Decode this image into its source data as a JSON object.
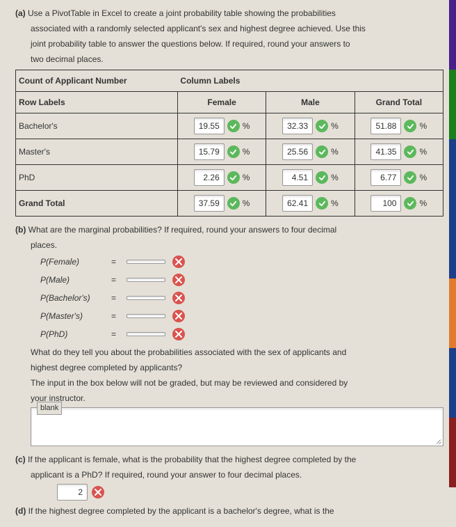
{
  "part_a": {
    "label": "(a)",
    "text_lines": [
      "Use a PivotTable in Excel to create a joint probability table showing the probabilities",
      "associated with a randomly selected applicant's sex and highest degree achieved. Use this",
      "joint probability table to answer the questions below. If required, round your answers to",
      "two decimal places."
    ]
  },
  "table": {
    "count_label": "Count of Applicant Number",
    "column_labels": "Column Labels",
    "row_labels": "Row Labels",
    "cols": [
      "Female",
      "Male",
      "Grand Total"
    ],
    "rows": [
      {
        "label": "Bachelor's",
        "vals": [
          "19.55",
          "32.33",
          "51.88"
        ]
      },
      {
        "label": "Master's",
        "vals": [
          "15.79",
          "25.56",
          "41.35"
        ]
      },
      {
        "label": "PhD",
        "vals": [
          "2.26",
          "4.51",
          "6.77"
        ]
      },
      {
        "label": "Grand Total",
        "vals": [
          "37.59",
          "62.41",
          "100"
        ]
      }
    ],
    "pct": "%",
    "val_box_bg": "#ffffff",
    "check_color": "#5cb85c"
  },
  "part_b": {
    "label": "(b)",
    "question": "What are the marginal probabilities? If required, round your answers to four decimal",
    "question2": "places.",
    "items": [
      {
        "label": "P(Female)",
        "val": ""
      },
      {
        "label": "P(Male)",
        "val": ""
      },
      {
        "label": "P(Bachelor's)",
        "val": ""
      },
      {
        "label": "P(Master's)",
        "val": ""
      },
      {
        "label": "P(PhD)",
        "val": ""
      }
    ],
    "eq": "=",
    "x_color": "#d9534f",
    "follow_lines": [
      "What do they tell you about the probabilities associated with the sex of applicants and",
      "highest degree completed by applicants?",
      "The input in the box below will not be graded, but may be reviewed and considered by",
      "your instructor."
    ],
    "blank_label": "blank"
  },
  "part_c": {
    "label": "(c)",
    "lines": [
      "If the applicant is female, what is the probability that the highest degree completed by the",
      "applicant is a PhD? If required, round your answer to four decimal places."
    ],
    "val": "2"
  },
  "part_d": {
    "label": "(d)",
    "line": "If the highest degree completed by the applicant is a bachelor's degree, what is the"
  },
  "side_colors": [
    "#4b1f8a",
    "#1b7f1b",
    "#1b3f8a",
    "#1b3f8a",
    "#e07b2e",
    "#1b3f8a",
    "#8a1f1f"
  ]
}
